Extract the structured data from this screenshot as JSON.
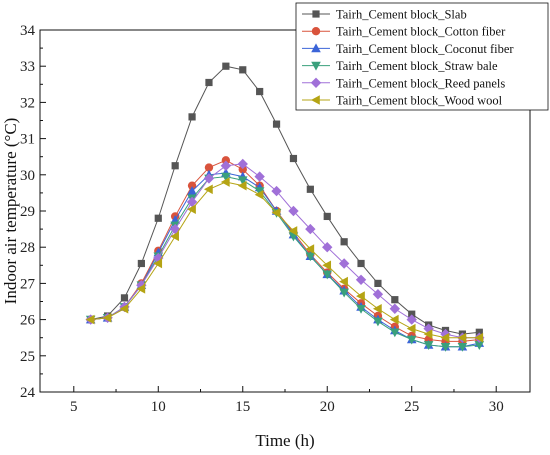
{
  "chart_data": {
    "type": "line",
    "xlabel": "Time (h)",
    "ylabel": "Indoor air temperature (°C)",
    "xlim": [
      3,
      32
    ],
    "ylim": [
      24,
      34
    ],
    "xticks": [
      5,
      10,
      15,
      20,
      25,
      30
    ],
    "yticks": [
      24,
      25,
      26,
      27,
      28,
      29,
      30,
      31,
      32,
      33,
      34
    ],
    "grid": false,
    "legend_position": "top-right",
    "x": [
      6,
      7,
      8,
      9,
      10,
      11,
      12,
      13,
      14,
      15,
      16,
      17,
      18,
      19,
      20,
      21,
      22,
      23,
      24,
      25,
      26,
      27,
      28,
      29
    ],
    "series": [
      {
        "name": "Tairh_Cement block_Slab",
        "color": "#555555",
        "marker": "square",
        "values": [
          26.0,
          26.1,
          26.6,
          27.55,
          28.8,
          30.25,
          31.6,
          32.55,
          33.0,
          32.9,
          32.3,
          31.4,
          30.45,
          29.6,
          28.85,
          28.15,
          27.55,
          27.0,
          26.55,
          26.15,
          25.85,
          25.7,
          25.6,
          25.65
        ]
      },
      {
        "name": "Tairh_Cement block_Cotton fiber",
        "color": "#d9533c",
        "marker": "circle",
        "values": [
          26.0,
          26.05,
          26.35,
          27.0,
          27.9,
          28.85,
          29.7,
          30.2,
          30.4,
          30.15,
          29.7,
          29.0,
          28.4,
          27.8,
          27.3,
          26.85,
          26.45,
          26.1,
          25.8,
          25.55,
          25.45,
          25.4,
          25.4,
          25.45
        ]
      },
      {
        "name": "Tairh_Cement block_Coconut fiber",
        "color": "#3b64d8",
        "marker": "triangle-up",
        "values": [
          26.0,
          26.05,
          26.35,
          26.95,
          27.85,
          28.75,
          29.55,
          30.0,
          30.05,
          29.95,
          29.65,
          29.0,
          28.35,
          27.75,
          27.25,
          26.8,
          26.35,
          26.0,
          25.7,
          25.45,
          25.3,
          25.25,
          25.25,
          25.35
        ]
      },
      {
        "name": "Tairh_Cement block_Straw bale",
        "color": "#3aa07c",
        "marker": "triangle-down",
        "values": [
          26.0,
          26.05,
          26.35,
          26.95,
          27.75,
          28.6,
          29.35,
          29.9,
          29.95,
          29.85,
          29.55,
          28.95,
          28.3,
          27.75,
          27.25,
          26.75,
          26.3,
          25.95,
          25.65,
          25.45,
          25.3,
          25.25,
          25.25,
          25.3
        ]
      },
      {
        "name": "Tairh_Cement block_Reed panels",
        "color": "#a070d8",
        "marker": "diamond",
        "values": [
          26.0,
          26.05,
          26.35,
          26.95,
          27.7,
          28.5,
          29.25,
          29.9,
          30.25,
          30.3,
          29.95,
          29.55,
          29.0,
          28.5,
          28.0,
          27.55,
          27.1,
          26.7,
          26.3,
          26.0,
          25.75,
          25.6,
          25.5,
          25.5
        ]
      },
      {
        "name": "Tairh_Cement block_Wood wool",
        "color": "#b5a414",
        "marker": "triangle-left",
        "values": [
          26.0,
          26.05,
          26.3,
          26.85,
          27.55,
          28.3,
          29.05,
          29.6,
          29.8,
          29.7,
          29.45,
          28.95,
          28.45,
          27.95,
          27.5,
          27.05,
          26.65,
          26.3,
          26.0,
          25.75,
          25.6,
          25.5,
          25.5,
          25.5
        ]
      }
    ]
  }
}
